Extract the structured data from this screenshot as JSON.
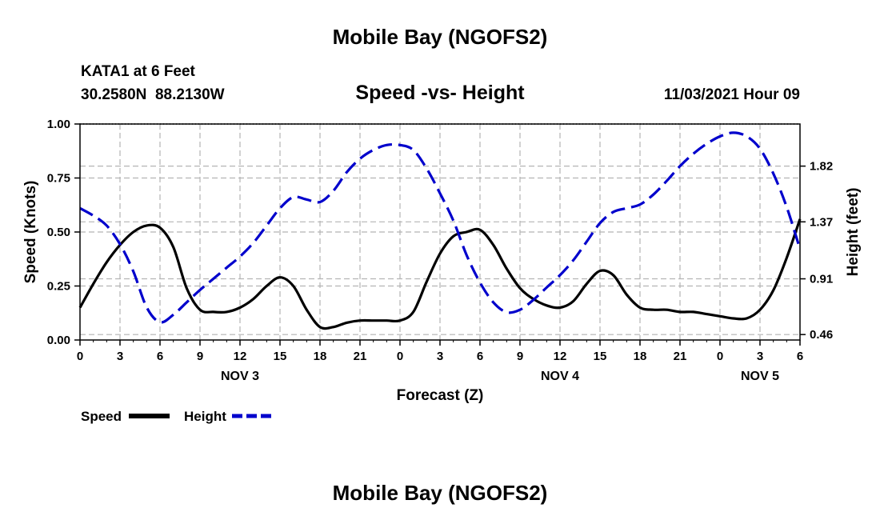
{
  "page": {
    "title_top": "Mobile Bay (NGOFS2)",
    "title_bottom": "Mobile Bay (NGOFS2)"
  },
  "header": {
    "station": "KATA1 at 6 Feet",
    "coords": "30.2580N  88.2130W",
    "subtitle": "Speed -vs- Height",
    "datetime": "11/03/2021 Hour 09"
  },
  "chart_data": {
    "type": "line",
    "title": "Speed -vs- Height",
    "xlabel": "Forecast (Z)",
    "ylabel": "Speed (Knots)",
    "y2label": "Height (feet)",
    "xlim": [
      0,
      54
    ],
    "ylim": [
      0,
      1.0
    ],
    "y2lim": [
      0.416,
      2.16
    ],
    "x_ticks": [
      0,
      3,
      6,
      9,
      12,
      15,
      18,
      21,
      24,
      27,
      30,
      33,
      36,
      39,
      42,
      45,
      48,
      51,
      54
    ],
    "x_tick_labels": [
      "0",
      "3",
      "6",
      "9",
      "12",
      "15",
      "18",
      "21",
      "0",
      "3",
      "6",
      "9",
      "12",
      "15",
      "18",
      "21",
      "0",
      "3",
      "6"
    ],
    "day_labels": [
      {
        "x": 12,
        "label": "NOV 3"
      },
      {
        "x": 36,
        "label": "NOV 4"
      },
      {
        "x": 51,
        "label": "NOV 5"
      }
    ],
    "y_ticks": [
      0.0,
      0.25,
      0.5,
      0.75,
      1.0
    ],
    "y_tick_labels": [
      "0.00",
      "0.25",
      "0.50",
      "0.75",
      "1.00"
    ],
    "y2_ticks": [
      0.46,
      0.91,
      1.37,
      1.82
    ],
    "y2_tick_labels": [
      "0.46",
      "0.91",
      "1.37",
      "1.82"
    ],
    "grid": true,
    "legend_position": "bottom-left",
    "series": [
      {
        "name": "Speed",
        "axis": "left",
        "color": "#000000",
        "style": "solid",
        "x": [
          0,
          1,
          2,
          3,
          4,
          5,
          6,
          7,
          8,
          9,
          10,
          11,
          12,
          13,
          14,
          15,
          16,
          17,
          18,
          19,
          20,
          21,
          22,
          23,
          24,
          25,
          26,
          27,
          28,
          29,
          30,
          31,
          32,
          33,
          34,
          35,
          36,
          37,
          38,
          39,
          40,
          41,
          42,
          43,
          44,
          45,
          46,
          47,
          48,
          49,
          50,
          51,
          52,
          53,
          54
        ],
        "values": [
          0.15,
          0.26,
          0.36,
          0.44,
          0.5,
          0.53,
          0.52,
          0.43,
          0.24,
          0.14,
          0.13,
          0.13,
          0.15,
          0.19,
          0.25,
          0.29,
          0.25,
          0.14,
          0.06,
          0.06,
          0.08,
          0.09,
          0.09,
          0.09,
          0.09,
          0.13,
          0.27,
          0.4,
          0.48,
          0.5,
          0.51,
          0.44,
          0.33,
          0.24,
          0.19,
          0.16,
          0.15,
          0.18,
          0.26,
          0.32,
          0.3,
          0.21,
          0.15,
          0.14,
          0.14,
          0.13,
          0.13,
          0.12,
          0.11,
          0.1,
          0.1,
          0.14,
          0.23,
          0.38,
          0.56
        ]
      },
      {
        "name": "Height",
        "axis": "right",
        "color": "#0000cc",
        "style": "dashed",
        "x": [
          0,
          1,
          2,
          3,
          4,
          5,
          6,
          7,
          8,
          9,
          10,
          11,
          12,
          13,
          14,
          15,
          16,
          17,
          18,
          19,
          20,
          21,
          22,
          23,
          24,
          25,
          26,
          27,
          28,
          29,
          30,
          31,
          32,
          33,
          34,
          35,
          36,
          37,
          38,
          39,
          40,
          41,
          42,
          43,
          44,
          45,
          46,
          47,
          48,
          49,
          50,
          51,
          52,
          53,
          54
        ],
        "values": [
          1.48,
          1.42,
          1.34,
          1.19,
          0.97,
          0.68,
          0.56,
          0.62,
          0.72,
          0.82,
          0.91,
          1.0,
          1.09,
          1.2,
          1.34,
          1.48,
          1.57,
          1.55,
          1.53,
          1.62,
          1.77,
          1.88,
          1.95,
          1.99,
          1.99,
          1.95,
          1.8,
          1.6,
          1.38,
          1.1,
          0.88,
          0.72,
          0.64,
          0.66,
          0.74,
          0.84,
          0.94,
          1.06,
          1.21,
          1.36,
          1.45,
          1.48,
          1.51,
          1.59,
          1.7,
          1.82,
          1.92,
          2.0,
          2.06,
          2.09,
          2.06,
          1.96,
          1.76,
          1.49,
          1.15
        ]
      }
    ]
  },
  "legend": [
    {
      "label": "Speed",
      "color": "#000000",
      "style": "solid"
    },
    {
      "label": "Height",
      "color": "#0000cc",
      "style": "dashed"
    }
  ]
}
